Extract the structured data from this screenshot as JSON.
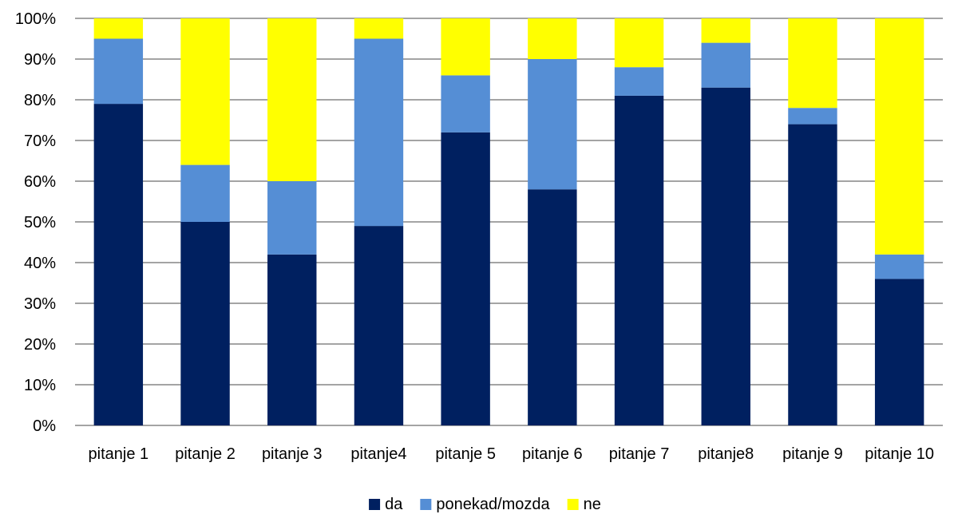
{
  "chart_data": {
    "type": "bar",
    "stacked": true,
    "percent_stacked": true,
    "categories": [
      "pitanje 1",
      "pitanje 2",
      "pitanje 3",
      "pitanje4",
      "pitanje 5",
      "pitanje 6",
      "pitanje 7",
      "pitanje8",
      "pitanje 9",
      "pitanje 10"
    ],
    "series": [
      {
        "name": "da",
        "color": "#002060",
        "values": [
          79,
          50,
          42,
          49,
          72,
          58,
          81,
          83,
          74,
          36
        ]
      },
      {
        "name": "ponekad/mozda",
        "color": "#558ED5",
        "values": [
          16,
          14,
          18,
          46,
          14,
          32,
          7,
          11,
          4,
          6
        ]
      },
      {
        "name": "ne",
        "color": "#FFFF00",
        "values": [
          5,
          36,
          40,
          5,
          14,
          10,
          12,
          6,
          22,
          58
        ]
      }
    ],
    "y_ticks": [
      "0%",
      "10%",
      "20%",
      "30%",
      "40%",
      "50%",
      "60%",
      "70%",
      "80%",
      "90%",
      "100%"
    ],
    "ylim": [
      0,
      100
    ],
    "grid": true,
    "legend_position": "bottom",
    "gridline_color": "#868686"
  }
}
